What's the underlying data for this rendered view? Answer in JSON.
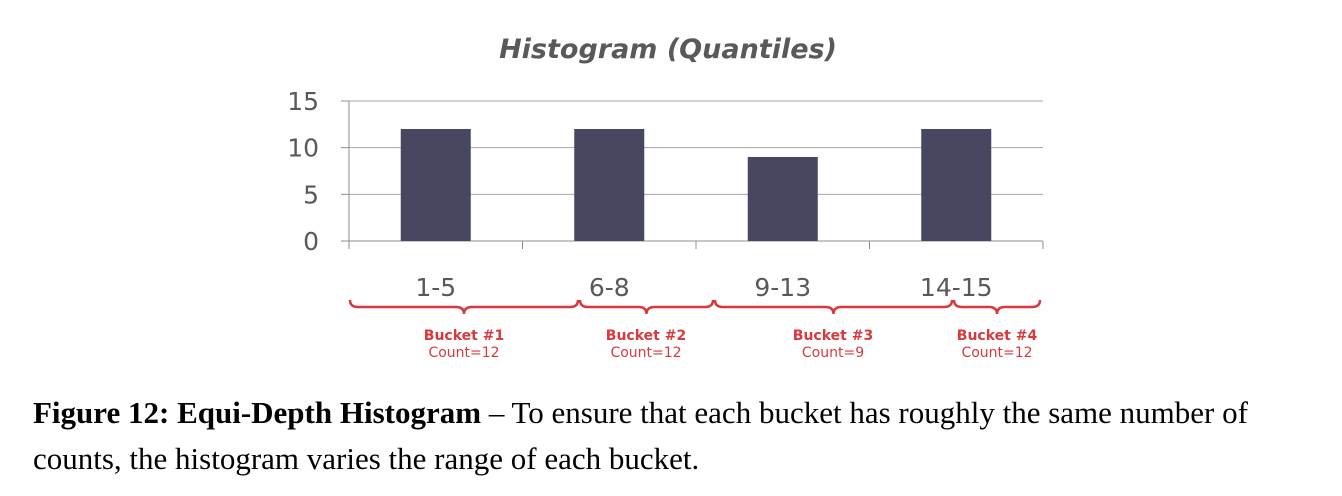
{
  "chart_data": {
    "type": "bar",
    "title": "Histogram (Quantiles)",
    "categories": [
      "1-5",
      "6-8",
      "9-13",
      "14-15"
    ],
    "values": [
      12,
      12,
      9,
      12
    ],
    "ylim": [
      0,
      15
    ],
    "yticks": [
      0,
      5,
      10,
      15
    ],
    "grid": true,
    "bar_color": "#474762",
    "annotations": [
      {
        "bucket": "Bucket #1",
        "count": "Count=12"
      },
      {
        "bucket": "Bucket #2",
        "count": "Count=12"
      },
      {
        "bucket": "Bucket #3",
        "count": "Count=9"
      },
      {
        "bucket": "Bucket #4",
        "count": "Count=12"
      }
    ],
    "annotation_color": "#d9393c"
  },
  "caption": {
    "label": "Figure 12: Equi-Depth Histogram",
    "text": " – To ensure that each bucket has roughly the same number of counts, the histogram varies the range of each bucket."
  }
}
